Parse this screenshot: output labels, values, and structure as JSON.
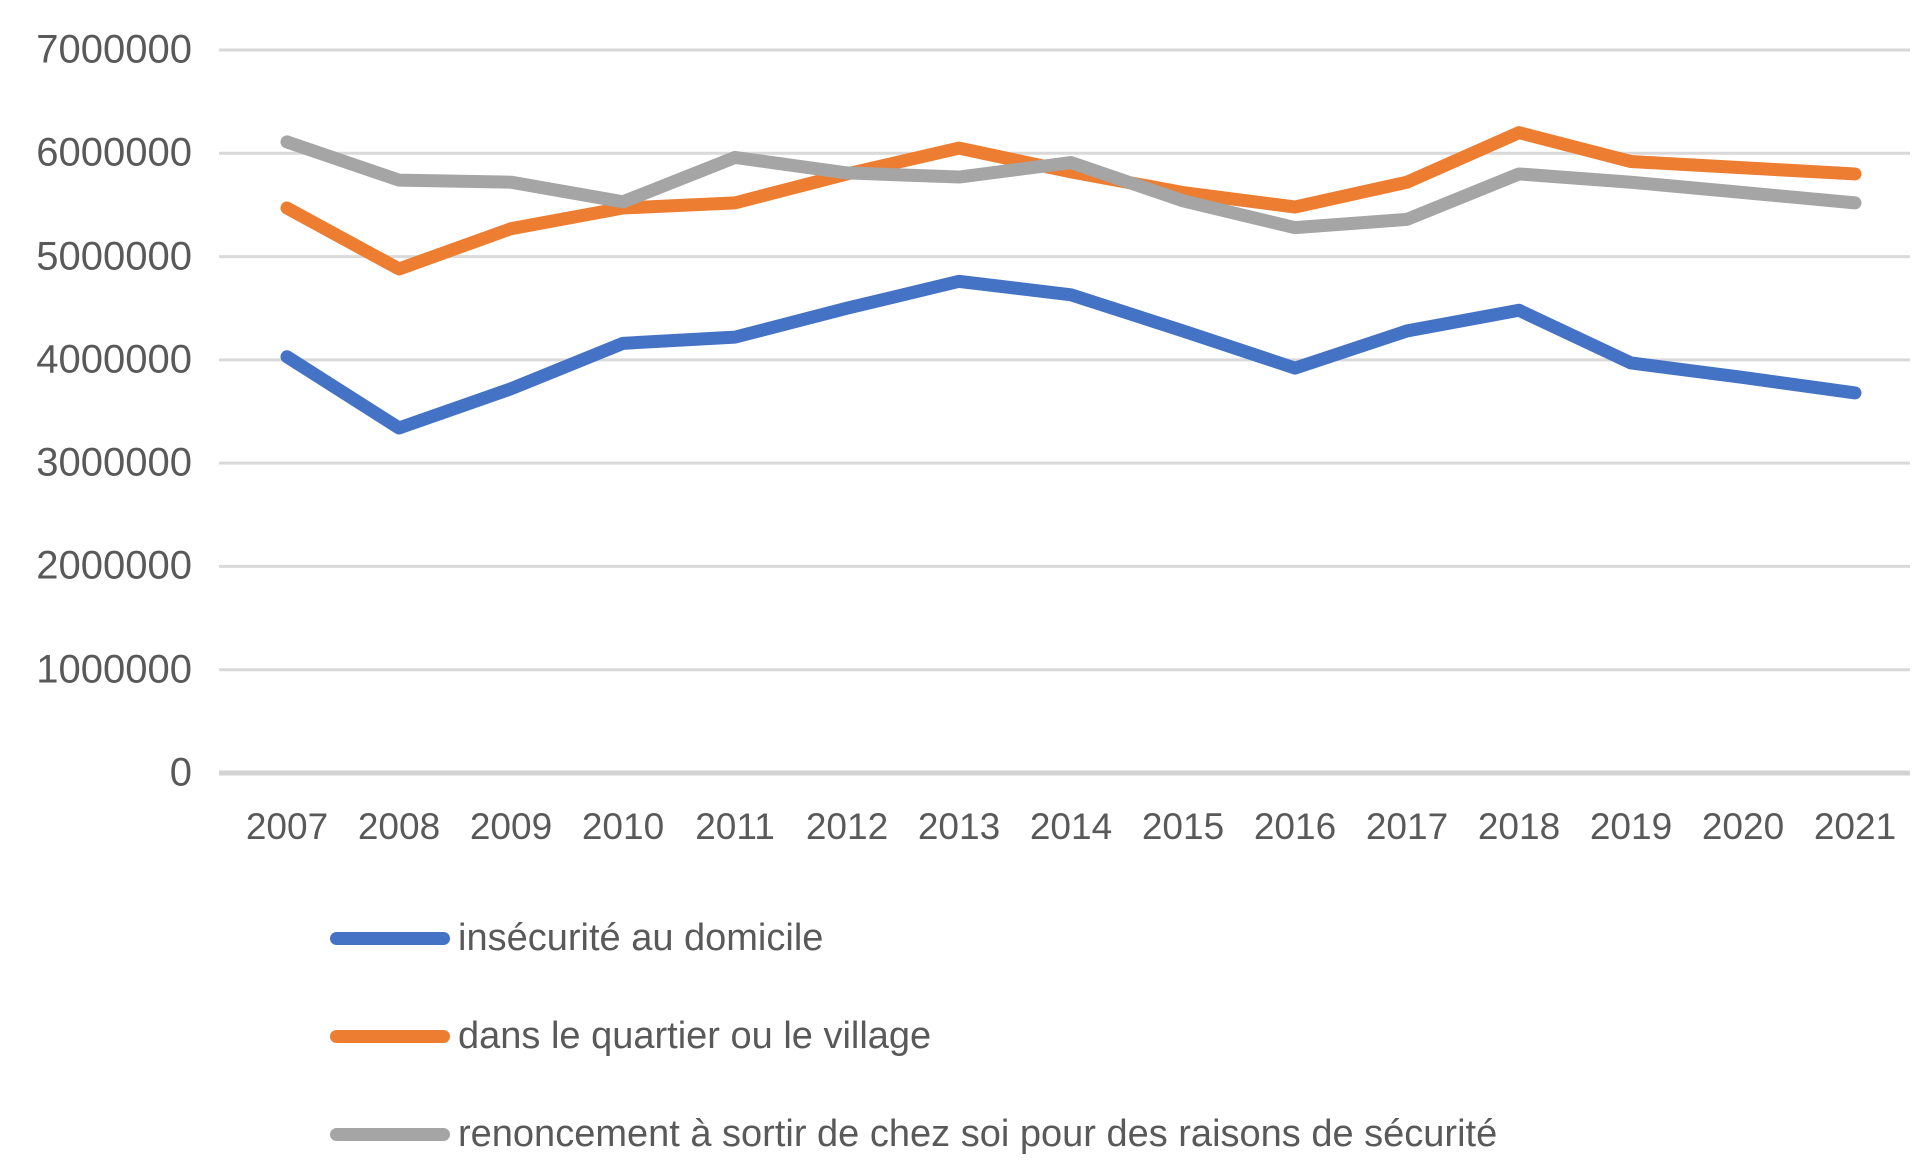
{
  "chart_data": {
    "type": "line",
    "title": "",
    "xlabel": "",
    "ylabel": "",
    "grid": true,
    "legend_position": "bottom-left",
    "x_categories": [
      "2007",
      "2008",
      "2009",
      "2010",
      "2011",
      "2012",
      "2013",
      "2014",
      "2015",
      "2016",
      "2017",
      "2018",
      "2019",
      "2020",
      "2021"
    ],
    "y_axis": {
      "min": 0,
      "max": 7000000,
      "ticks": [
        {
          "value": 7000000,
          "label": "7000000"
        },
        {
          "value": 6000000,
          "label": "6000000"
        },
        {
          "value": 5000000,
          "label": "5000000"
        },
        {
          "value": 4000000,
          "label": "4000000"
        },
        {
          "value": 3000000,
          "label": "3000000"
        },
        {
          "value": 2000000,
          "label": "2000000"
        },
        {
          "value": 1000000,
          "label": "1000000"
        },
        {
          "value": 0,
          "label": "0"
        }
      ]
    },
    "series": [
      {
        "name": "insécurité au domicile",
        "color": "#4472C4",
        "values": [
          4030000,
          3340000,
          3720000,
          4160000,
          4220000,
          4500000,
          4760000,
          4630000,
          4280000,
          3920000,
          4280000,
          4480000,
          3970000,
          3830000,
          3680000
        ]
      },
      {
        "name": "dans le quartier ou le village",
        "color": "#ED7D31",
        "values": [
          5470000,
          4880000,
          5270000,
          5470000,
          5520000,
          5800000,
          6050000,
          5820000,
          5620000,
          5480000,
          5720000,
          6200000,
          5920000,
          5860000,
          5800000
        ]
      },
      {
        "name": "renoncement à sortir de chez soi pour des raisons de sécurité",
        "color": "#A5A5A5",
        "values": [
          6110000,
          5740000,
          5720000,
          5530000,
          5960000,
          5810000,
          5770000,
          5910000,
          5540000,
          5280000,
          5360000,
          5800000,
          5720000,
          5620000,
          5520000
        ]
      }
    ],
    "colors": {
      "gridline": "#D9D9D9",
      "axis_line": "#D3D3D3",
      "tick_text": "#595959"
    }
  }
}
